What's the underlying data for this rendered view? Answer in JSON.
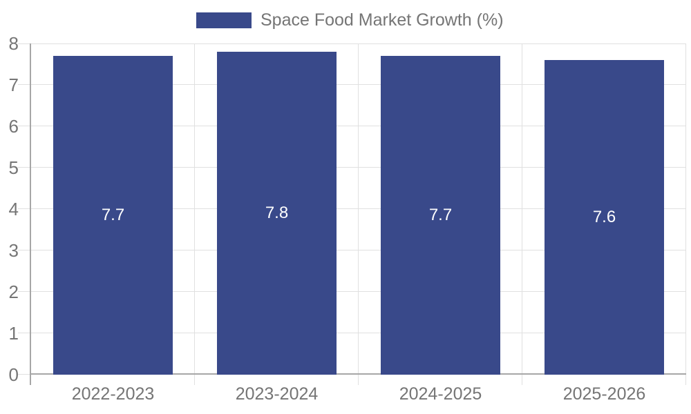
{
  "legend": {
    "label": "Space Food Market Growth (%)"
  },
  "chart_data": {
    "type": "bar",
    "title": "Space Food Market Growth (%)",
    "categories": [
      "2022-2023",
      "2023-2024",
      "2024-2025",
      "2025-2026"
    ],
    "values": [
      7.7,
      7.8,
      7.7,
      7.6
    ],
    "value_labels": [
      "7.7",
      "7.8",
      "7.7",
      "7.6"
    ],
    "xlabel": "",
    "ylabel": "",
    "ylim": [
      0,
      8
    ],
    "yticks": [
      0,
      1,
      2,
      3,
      4,
      5,
      6,
      7,
      8
    ],
    "grid": true,
    "legend_position": "top-center",
    "colors": {
      "bar": "#39498A",
      "axis": "#a6a6a6",
      "gridline": "#e0e0e0",
      "tick_label": "#757575",
      "value_label": "#ffffff"
    }
  }
}
